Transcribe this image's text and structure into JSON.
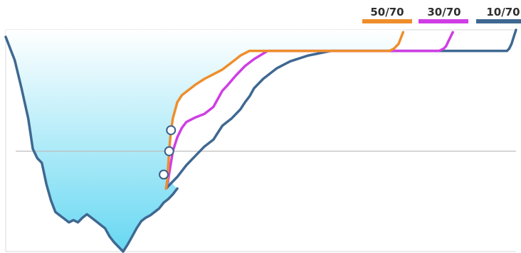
{
  "colors": {
    "area_top": "#ffffff",
    "area_bottom": "#67d8f2",
    "reference_line": "#bdbdbd",
    "frame": "#d9d9d9",
    "marker_fill": "#ffffff",
    "marker_stroke": "#3a5f88"
  },
  "chart_data": {
    "type": "line",
    "title": "",
    "xlabel": "",
    "ylabel": "",
    "legend_position": "top-right",
    "grid": false,
    "reference_line": {
      "y": 0
    },
    "base_profile": {
      "x": [
        0.0,
        2.0,
        3.5,
        5.0,
        6.0,
        7.0,
        8.0,
        9.0,
        10.0,
        11.0,
        12.0,
        13.0,
        14.0,
        15.0,
        16.0,
        17.0,
        18.0,
        19.0,
        20.0,
        21.0,
        22.0,
        23.0,
        24.0,
        25.0,
        26.0,
        27.0,
        28.0,
        29.0,
        30.0,
        31.0,
        32.0,
        33.0,
        34.0,
        35.0,
        36.0,
        37.0,
        38.0
      ],
      "y": [
        49.0,
        39.0,
        27.0,
        14.0,
        1.0,
        -3.0,
        -5.0,
        -14.0,
        -21.0,
        -26.0,
        -27.5,
        -29.0,
        -30.5,
        -29.5,
        -30.5,
        -28.5,
        -27.0,
        -28.5,
        -30.0,
        -31.5,
        -33.0,
        -36.5,
        -39.0,
        -41.0,
        -43.0,
        -40.0,
        -36.5,
        -33.0,
        -30.0,
        -28.5,
        -27.5,
        -26.0,
        -24.5,
        -22.0,
        -20.5,
        -18.5,
        -16.0
      ]
    },
    "series": [
      {
        "name": "50/70",
        "color": "#ee8e2c",
        "x": [
          35.5,
          35.8,
          36.0,
          36.2,
          36.5,
          37.0,
          38.0,
          39.0,
          40.0,
          41.0,
          42.0,
          44.0,
          46.0,
          48.0,
          49.0,
          50.0,
          51.0,
          52.0,
          54.0,
          57.0,
          60.0,
          64.0,
          68.0,
          72.0,
          76.0,
          78.0,
          80.0,
          82.0,
          84.0,
          85.0,
          86.0,
          87.0,
          88.0
        ],
        "y": [
          -16.0,
          -12.0,
          -6.0,
          0.0,
          7.0,
          14.0,
          21.0,
          24.0,
          25.5,
          27.0,
          28.5,
          31.0,
          33.0,
          35.0,
          36.5,
          38.0,
          39.5,
          41.0,
          43.0,
          43.0,
          43.0,
          43.0,
          43.0,
          43.0,
          43.0,
          43.0,
          43.0,
          43.0,
          43.0,
          43.0,
          44.0,
          46.0,
          51.0
        ]
      },
      {
        "name": "30/70",
        "color": "#cf3ee4",
        "x": [
          35.5,
          36.0,
          36.5,
          37.0,
          38.0,
          39.0,
          40.0,
          42.0,
          44.0,
          46.0,
          47.0,
          48.0,
          49.0,
          51.0,
          53.0,
          55.0,
          58.0,
          61.0,
          65.0,
          70.0,
          75.0,
          80.0,
          85.0,
          88.0,
          91.0,
          93.0,
          95.0,
          96.0,
          97.0,
          97.5,
          98.0,
          98.5,
          99.0
        ],
        "y": [
          -16.0,
          -12.0,
          -6.0,
          0.0,
          6.0,
          10.0,
          12.5,
          14.5,
          16.0,
          19.0,
          22.5,
          26.0,
          28.0,
          32.5,
          36.5,
          39.5,
          43.0,
          43.0,
          43.0,
          43.0,
          43.0,
          43.0,
          43.0,
          43.0,
          43.0,
          43.0,
          43.0,
          43.0,
          44.0,
          45.0,
          47.0,
          49.0,
          51.0
        ]
      },
      {
        "name": "10/70",
        "color": "#3f6891",
        "x": [
          35.5,
          36.0,
          38.0,
          40.0,
          42.0,
          44.0,
          46.0,
          47.0,
          48.0,
          50.0,
          52.0,
          53.0,
          54.0,
          55.0,
          57.0,
          60.0,
          63.0,
          67.0,
          72.0,
          78.0,
          84.0,
          88.0,
          92.0,
          96.0,
          100.0,
          104.0,
          108.0,
          110.0,
          111.0,
          111.5,
          112.0,
          112.5,
          113.0
        ],
        "y": [
          -16.0,
          -15.0,
          -11.0,
          -6.0,
          -2.0,
          2.0,
          5.0,
          8.0,
          11.0,
          14.0,
          18.0,
          21.0,
          23.5,
          27.0,
          31.0,
          35.5,
          38.5,
          41.0,
          43.0,
          43.0,
          43.0,
          43.0,
          43.0,
          43.0,
          43.0,
          43.0,
          43.0,
          43.0,
          43.0,
          44.0,
          46.0,
          49.0,
          52.0
        ]
      }
    ],
    "markers": [
      {
        "x": 36.6,
        "y": 9.0
      },
      {
        "x": 36.2,
        "y": 0.0
      },
      {
        "x": 35.0,
        "y": -10.0
      }
    ]
  }
}
